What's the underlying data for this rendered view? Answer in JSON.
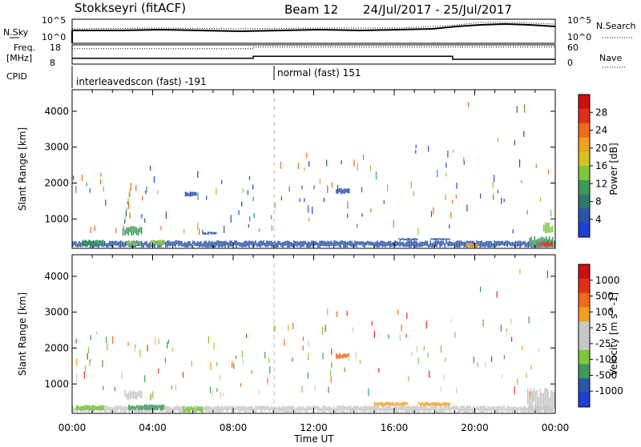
{
  "header": {
    "station": "Stokkseyri (fitACF)",
    "beam": "Beam 12",
    "dates": "24/Jul/2017 - 25/Jul/2017"
  },
  "noise_panel": {
    "left_label": "N.Sky",
    "right_label": "N.Search",
    "left_ticks": [
      "10^5",
      "10^0"
    ],
    "right_ticks": [
      "10^5",
      "10^0"
    ]
  },
  "freq_panel": {
    "left_label_1": "Freq.",
    "left_label_2": "[MHz]",
    "right_label": "Nave",
    "left_ticks": [
      "18",
      "8"
    ],
    "right_ticks": [
      "60",
      "0"
    ],
    "freq_mhz": [
      [
        0,
        11.0
      ],
      [
        9.0,
        11.0
      ],
      [
        9.0,
        12.1
      ],
      [
        18.9,
        12.1
      ],
      [
        18.9,
        10.5
      ],
      [
        24.0,
        10.5
      ]
    ],
    "nave": [
      [
        0,
        48
      ],
      [
        9.0,
        48
      ],
      [
        9.0,
        53
      ],
      [
        24.0,
        53
      ]
    ]
  },
  "cpid": {
    "label": "CPID",
    "segments": [
      {
        "name": "interleavedscon (fast) -191",
        "start_h": 0,
        "end_h": 10.0
      },
      {
        "name": "normal (fast) 151",
        "start_h": 10.0,
        "end_h": 24.0
      }
    ]
  },
  "chart_data": [
    {
      "type": "heatmap",
      "title": "Power",
      "ylabel": "Slant Range [km]",
      "xlabel": "",
      "ylim": [
        180,
        4600
      ],
      "xlim_hours": [
        0,
        24
      ],
      "yticks": [
        1000,
        2000,
        3000,
        4000
      ],
      "colorbar_label": "Power [dB]",
      "colorbar_ticks": [
        "4",
        "8",
        "12",
        "16",
        "20",
        "24",
        "28"
      ],
      "colorbar_colors": [
        "#1f3fd6",
        "#2a55a8",
        "#2e7a6a",
        "#3d9a58",
        "#7ec63c",
        "#d7c21e",
        "#f0a020",
        "#f06a18",
        "#e0301a",
        "#cc1010"
      ],
      "patches": [
        {
          "h0": 0.0,
          "h1": 23.9,
          "r0": 200,
          "r1": 400,
          "c": "#2a55a8"
        },
        {
          "h0": 0.5,
          "h1": 1.6,
          "r0": 230,
          "r1": 420,
          "c": "#3d9a58"
        },
        {
          "h0": 2.6,
          "h1": 3.5,
          "r0": 530,
          "r1": 800,
          "c": "#3d9a58"
        },
        {
          "h0": 2.7,
          "h1": 3.4,
          "r0": 250,
          "r1": 400,
          "c": "#7ec63c"
        },
        {
          "h0": 3.9,
          "h1": 4.6,
          "r0": 250,
          "r1": 420,
          "c": "#7ec63c"
        },
        {
          "h0": 5.6,
          "h1": 6.2,
          "r0": 1620,
          "r1": 1760,
          "c": "#2a55a8"
        },
        {
          "h0": 6.5,
          "h1": 7.2,
          "r0": 560,
          "r1": 640,
          "c": "#2a55a8"
        },
        {
          "h0": 13.1,
          "h1": 13.8,
          "r0": 1680,
          "r1": 1860,
          "c": "#2a55a8"
        },
        {
          "h0": 16.2,
          "h1": 17.2,
          "r0": 400,
          "r1": 470,
          "c": "#2a55a8"
        },
        {
          "h0": 17.8,
          "h1": 18.8,
          "r0": 400,
          "r1": 470,
          "c": "#2a55a8"
        },
        {
          "h0": 19.6,
          "h1": 20.2,
          "r0": 200,
          "r1": 330,
          "c": "#f0a020"
        },
        {
          "h0": 22.7,
          "h1": 24.0,
          "r0": 200,
          "r1": 520,
          "c": "#3d9a58"
        },
        {
          "h0": 23.1,
          "h1": 23.9,
          "r0": 220,
          "r1": 360,
          "c": "#e0301a"
        },
        {
          "h0": 23.4,
          "h1": 23.9,
          "r0": 600,
          "r1": 900,
          "c": "#7ec63c"
        }
      ]
    },
    {
      "type": "heatmap",
      "title": "Velocity",
      "ylabel": "Slant Range [km]",
      "xlabel": "Time UT",
      "ylim": [
        180,
        4600
      ],
      "xlim_hours": [
        0,
        24
      ],
      "yticks": [
        1000,
        2000,
        3000,
        4000
      ],
      "xticks": [
        "00:00",
        "04:00",
        "08:00",
        "12:00",
        "16:00",
        "20:00",
        "00:00"
      ],
      "colorbar_label": "Velocity [m s^-1]",
      "colorbar_ticks": [
        "1000",
        "500",
        "100",
        "25",
        "-25",
        "-100",
        "-500",
        "-1000"
      ],
      "colorbar_colors": [
        "#1f3fd6",
        "#2a55a8",
        "#3d9a58",
        "#7ec63c",
        "#c8c8c8",
        "#c8c8c8",
        "#f0a020",
        "#f06a18",
        "#e0301a",
        "#cc1010"
      ],
      "patches": [
        {
          "h0": 0.0,
          "h1": 23.9,
          "r0": 200,
          "r1": 400,
          "c": "#c8c8c8"
        },
        {
          "h0": 0.2,
          "h1": 1.6,
          "r0": 250,
          "r1": 420,
          "c": "#7ec63c"
        },
        {
          "h0": 2.6,
          "h1": 3.5,
          "r0": 560,
          "r1": 840,
          "c": "#c8c8c8"
        },
        {
          "h0": 2.8,
          "h1": 4.6,
          "r0": 260,
          "r1": 430,
          "c": "#3d9a58"
        },
        {
          "h0": 5.5,
          "h1": 6.5,
          "r0": 200,
          "r1": 380,
          "c": "#7ec63c"
        },
        {
          "h0": 13.1,
          "h1": 13.8,
          "r0": 1700,
          "r1": 1860,
          "c": "#f06a18"
        },
        {
          "h0": 15.0,
          "h1": 16.7,
          "r0": 380,
          "r1": 500,
          "c": "#f0a020"
        },
        {
          "h0": 17.2,
          "h1": 18.8,
          "r0": 380,
          "r1": 500,
          "c": "#f0a020"
        },
        {
          "h0": 22.6,
          "h1": 24.0,
          "r0": 200,
          "r1": 900,
          "c": "#c8c8c8"
        }
      ]
    }
  ]
}
